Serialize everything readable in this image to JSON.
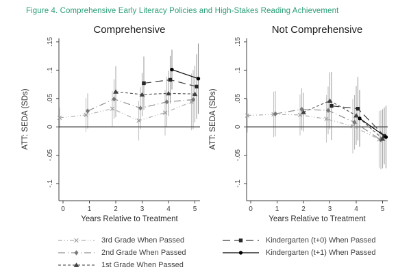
{
  "figure_title": "Figure 4. Comprehensive Early Literacy Policies and High-Stakes Reading Achievement",
  "colors": {
    "title_green": "#2a9d77",
    "axis": "#3f3f3f",
    "zero_line": "#4d4d4d",
    "tick_text": "#3d3d3d",
    "panel_title_text": "#1a1a1a",
    "background": "#ffffff"
  },
  "x_axis": {
    "label": "Years Relative to Treatment",
    "ticks": [
      "0",
      "1",
      "2",
      "3",
      "4",
      "5"
    ]
  },
  "y_axis": {
    "label": "ATT: SEDA (SDs)",
    "ticks": [
      ".15",
      ".1",
      ".05",
      "0",
      "-.05",
      "-.1"
    ],
    "tick_values": [
      0.15,
      0.1,
      0.05,
      0,
      -0.05,
      -0.1
    ]
  },
  "legend": {
    "items": [
      {
        "key": "grade3",
        "label": "3rd Grade When Passed"
      },
      {
        "key": "grade2",
        "label": "2nd Grade When Passed"
      },
      {
        "key": "grade1",
        "label": "1st Grade When Passed"
      },
      {
        "key": "k0",
        "label": "Kindergarten (t+0) When Passed"
      },
      {
        "key": "k1",
        "label": "Kindergarten (t+1) When Passed"
      }
    ]
  },
  "chart_data": {
    "type": "line",
    "xlabel": "Years Relative to Treatment",
    "ylabel": "ATT: SEDA (SDs)",
    "xlim": [
      -0.6,
      5.6
    ],
    "ylim": [
      -0.13,
      0.157
    ],
    "grid": false,
    "error_bars": true,
    "legend_position": "bottom",
    "series_styles": {
      "grade3": {
        "marker": "x-marker",
        "color": "#adadad",
        "marker_color": "#9a9a9a",
        "ci_color": "#c4c4c4",
        "dash": "6 3 1 3 1 3",
        "offset": -5
      },
      "grade2": {
        "marker": "diamond-marker",
        "color": "#8f8f8f",
        "marker_color": "#787878",
        "ci_color": "#b8b8b8",
        "dash": "10 4 1 4",
        "offset": -2.5
      },
      "grade1": {
        "marker": "triangle-marker",
        "color": "#5a5a5a",
        "marker_color": "#404040",
        "ci_color": "#ababab",
        "dash": "4 3",
        "offset": 0
      },
      "k0": {
        "marker": "square-marker",
        "color": "#3a3a3a",
        "marker_color": "#262626",
        "ci_color": "#9e9e9e",
        "dash": "11 6",
        "offset": 2.5
      },
      "k1": {
        "marker": "circle-marker",
        "color": "#000000",
        "marker_color": "#000000",
        "ci_color": "#8f8f8f",
        "dash": "",
        "offset": 5
      }
    },
    "panels": [
      {
        "title": "Comprehensive",
        "series": [
          {
            "key": "grade3",
            "name": "3rd Grade When Passed",
            "x": [
              0,
              1,
              2,
              3,
              4,
              5
            ],
            "y": [
              0.016,
              0.021,
              0.032,
              0.011,
              0.025,
              0.044
            ],
            "ci": [
              0.018,
              0.03,
              0.031,
              0.035,
              0.04,
              0.05
            ]
          },
          {
            "key": "grade2",
            "name": "2nd Grade When Passed",
            "x": [
              1,
              2,
              3,
              4,
              5
            ],
            "y": [
              0.028,
              0.049,
              0.033,
              0.044,
              0.048
            ],
            "ci": [
              0.031,
              0.035,
              0.037,
              0.044,
              0.052
            ]
          },
          {
            "key": "grade1",
            "name": "1st Grade When Passed",
            "x": [
              2,
              3,
              4,
              5
            ],
            "y": [
              0.062,
              0.057,
              0.059,
              0.058
            ],
            "ci": [
              0.045,
              0.038,
              0.04,
              0.05
            ]
          },
          {
            "key": "k0",
            "name": "Kindergarten (t+0) When Passed",
            "x": [
              3,
              4,
              5
            ],
            "y": [
              0.077,
              0.083,
              0.071
            ],
            "ci": [
              0.047,
              0.042,
              0.057
            ]
          },
          {
            "key": "k1",
            "name": "Kindergarten (t+1) When Passed",
            "x": [
              4,
              5
            ],
            "y": [
              0.101,
              0.085
            ],
            "ci": [
              0.035,
              0.062
            ]
          }
        ]
      },
      {
        "title": "Not Comprehensive",
        "series": [
          {
            "key": "grade3",
            "name": "3rd Grade When Passed",
            "x": [
              0,
              1,
              2,
              3,
              4,
              5
            ],
            "y": [
              0.02,
              0.022,
              0.021,
              0.014,
              0.001,
              -0.022
            ],
            "ci": [
              0.03,
              0.04,
              0.036,
              0.042,
              0.048,
              0.05
            ]
          },
          {
            "key": "grade2",
            "name": "2nd Grade When Passed",
            "x": [
              1,
              2,
              3,
              4,
              5
            ],
            "y": [
              0.023,
              0.031,
              0.029,
              0.008,
              -0.023
            ],
            "ci": [
              0.04,
              0.037,
              0.042,
              0.048,
              0.052
            ]
          },
          {
            "key": "grade1",
            "name": "1st Grade When Passed",
            "x": [
              2,
              3,
              4,
              5
            ],
            "y": [
              0.026,
              0.046,
              0.02,
              -0.021
            ],
            "ci": [
              0.034,
              0.05,
              0.052,
              0.052
            ]
          },
          {
            "key": "k0",
            "name": "Kindergarten (t+0) When Passed",
            "x": [
              3,
              4,
              5
            ],
            "y": [
              0.037,
              0.032,
              -0.016
            ],
            "ci": [
              0.06,
              0.056,
              0.05
            ]
          },
          {
            "key": "k1",
            "name": "Kindergarten (t+1) When Passed",
            "x": [
              4,
              5
            ],
            "y": [
              0.015,
              -0.018
            ],
            "ci": [
              0.05,
              0.055
            ]
          }
        ]
      }
    ]
  }
}
